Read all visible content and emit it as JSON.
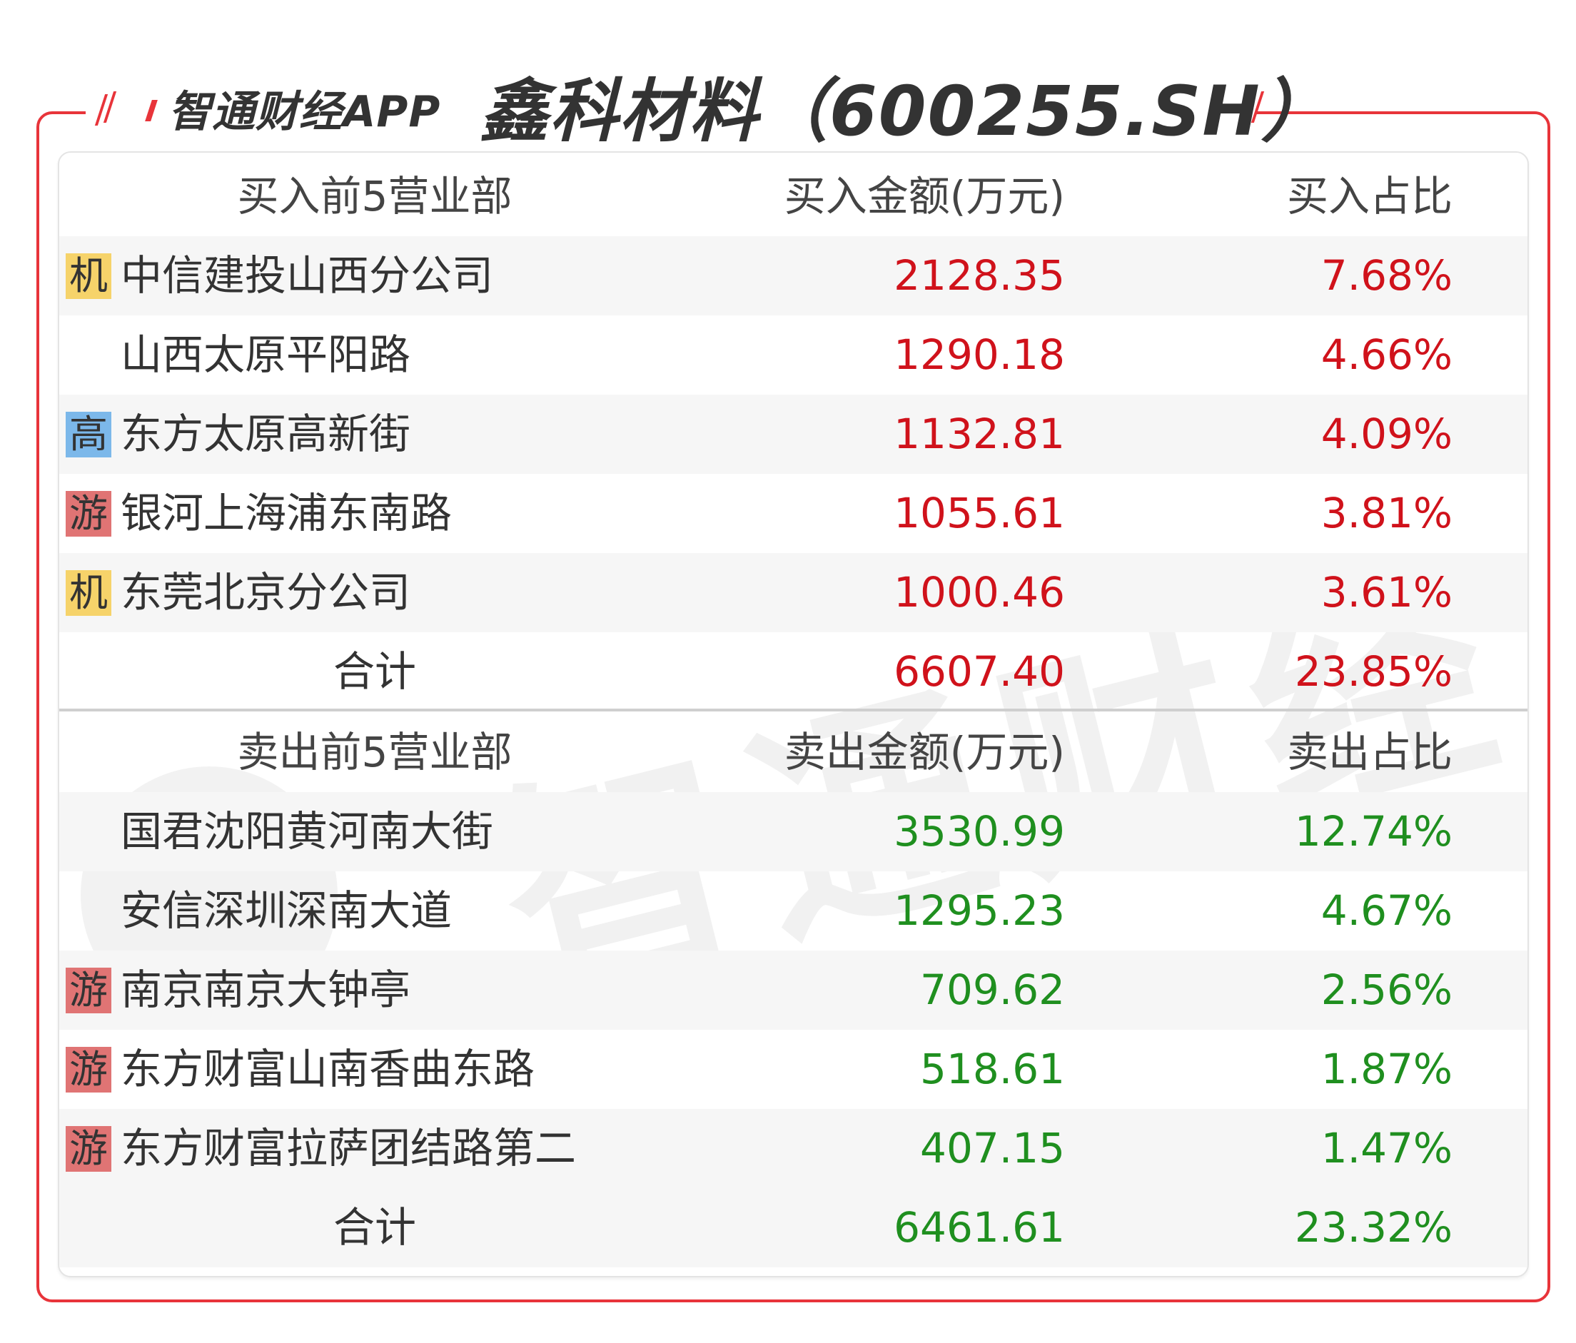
{
  "header": {
    "brand": "智通财经APP",
    "title": "鑫科材料（600255.SH）"
  },
  "watermark": "智通财经",
  "colors": {
    "frame": "#e8343a",
    "buy": "#d0121b",
    "sell": "#1f8f1f",
    "badge_机": "#f6d36a",
    "badge_高": "#7cb8ea",
    "badge_游": "#e07474"
  },
  "buy": {
    "headers": [
      "买入前5营业部",
      "买入金额(万元)",
      "买入占比"
    ],
    "rows": [
      {
        "badge": "机",
        "name": "中信建投山西分公司",
        "amount": "2128.35",
        "pct": "7.68%"
      },
      {
        "badge": "",
        "name": "山西太原平阳路",
        "amount": "1290.18",
        "pct": "4.66%"
      },
      {
        "badge": "高",
        "name": "东方太原高新街",
        "amount": "1132.81",
        "pct": "4.09%"
      },
      {
        "badge": "游",
        "name": "银河上海浦东南路",
        "amount": "1055.61",
        "pct": "3.81%"
      },
      {
        "badge": "机",
        "name": "东莞北京分公司",
        "amount": "1000.46",
        "pct": "3.61%"
      }
    ],
    "total": {
      "label": "合计",
      "amount": "6607.40",
      "pct": "23.85%"
    }
  },
  "sell": {
    "headers": [
      "卖出前5营业部",
      "卖出金额(万元)",
      "卖出占比"
    ],
    "rows": [
      {
        "badge": "",
        "name": "国君沈阳黄河南大街",
        "amount": "3530.99",
        "pct": "12.74%"
      },
      {
        "badge": "",
        "name": "安信深圳深南大道",
        "amount": "1295.23",
        "pct": "4.67%"
      },
      {
        "badge": "游",
        "name": "南京南京大钟亭",
        "amount": "709.62",
        "pct": "2.56%"
      },
      {
        "badge": "游",
        "name": "东方财富山南香曲东路",
        "amount": "518.61",
        "pct": "1.87%"
      },
      {
        "badge": "游",
        "name": "东方财富拉萨团结路第二",
        "amount": "407.15",
        "pct": "1.47%"
      }
    ],
    "total": {
      "label": "合计",
      "amount": "6461.61",
      "pct": "23.32%"
    }
  }
}
